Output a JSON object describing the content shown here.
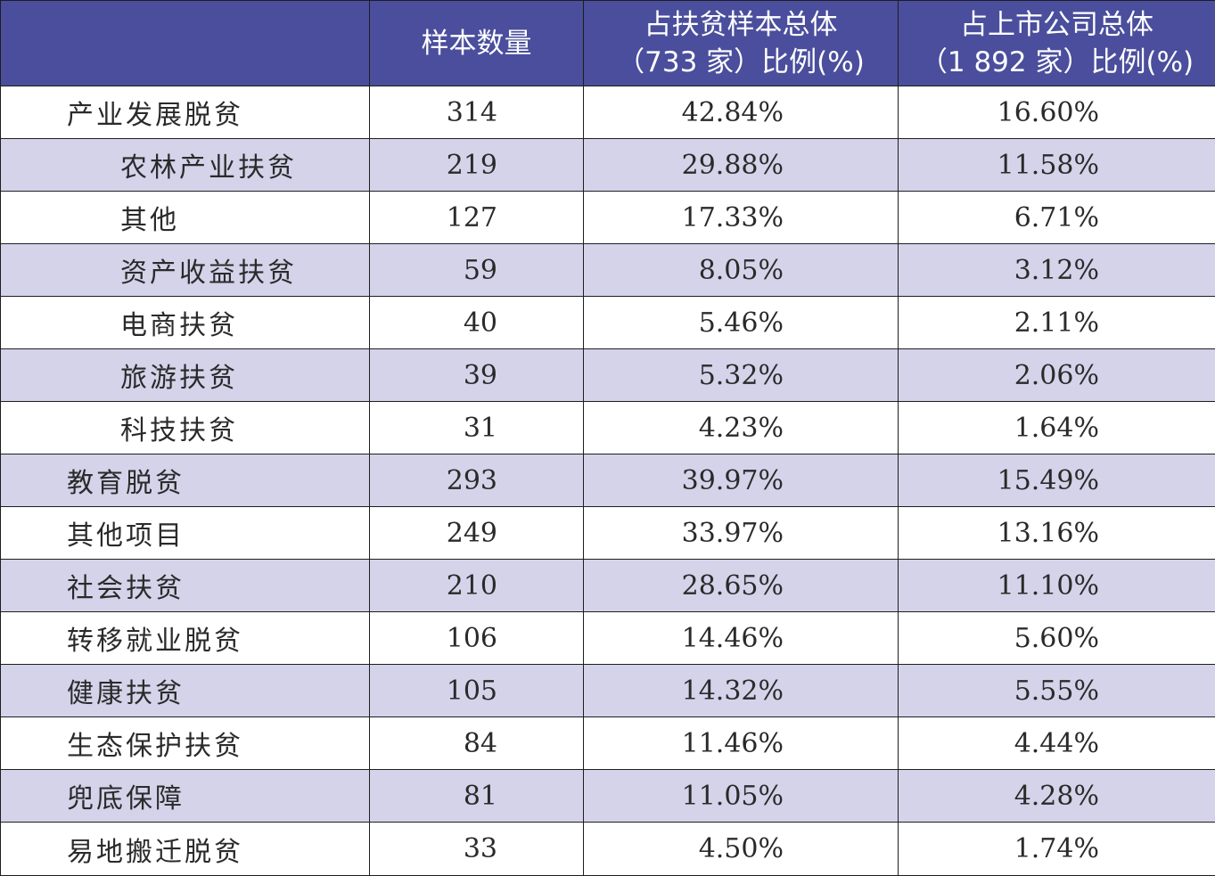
{
  "table": {
    "headers": {
      "blank": "",
      "count": "样本数量",
      "share_poverty_line1": "占扶贫样本总体",
      "share_poverty_line2": "（733 家）比例(%)",
      "share_listed_line1": "占上市公司总体",
      "share_listed_line2": "（1  892 家）比例(%)"
    },
    "rows": [
      {
        "name": "产业发展脱贫",
        "count": "314",
        "share_poverty": "42.84%",
        "share_listed": "16.60%",
        "sub": false
      },
      {
        "name": "农林产业扶贫",
        "count": "219",
        "share_poverty": "29.88%",
        "share_listed": "11.58%",
        "sub": true
      },
      {
        "name": "其他",
        "count": "127",
        "share_poverty": "17.33%",
        "share_listed": "6.71%",
        "sub": true
      },
      {
        "name": "资产收益扶贫",
        "count": "59",
        "share_poverty": "8.05%",
        "share_listed": "3.12%",
        "sub": true
      },
      {
        "name": "电商扶贫",
        "count": "40",
        "share_poverty": "5.46%",
        "share_listed": "2.11%",
        "sub": true
      },
      {
        "name": "旅游扶贫",
        "count": "39",
        "share_poverty": "5.32%",
        "share_listed": "2.06%",
        "sub": true
      },
      {
        "name": "科技扶贫",
        "count": "31",
        "share_poverty": "4.23%",
        "share_listed": "1.64%",
        "sub": true
      },
      {
        "name": "教育脱贫",
        "count": "293",
        "share_poverty": "39.97%",
        "share_listed": "15.49%",
        "sub": false
      },
      {
        "name": "其他项目",
        "count": "249",
        "share_poverty": "33.97%",
        "share_listed": "13.16%",
        "sub": false
      },
      {
        "name": "社会扶贫",
        "count": "210",
        "share_poverty": "28.65%",
        "share_listed": "11.10%",
        "sub": false
      },
      {
        "name": "转移就业脱贫",
        "count": "106",
        "share_poverty": "14.46%",
        "share_listed": "5.60%",
        "sub": false
      },
      {
        "name": "健康扶贫",
        "count": "105",
        "share_poverty": "14.32%",
        "share_listed": "5.55%",
        "sub": false
      },
      {
        "name": "生态保护扶贫",
        "count": "84",
        "share_poverty": "11.46%",
        "share_listed": "4.44%",
        "sub": false
      },
      {
        "name": "兜底保障",
        "count": "81",
        "share_poverty": "11.05%",
        "share_listed": "4.28%",
        "sub": false
      },
      {
        "name": "易地搬迁脱贫",
        "count": "33",
        "share_poverty": "4.50%",
        "share_listed": "1.74%",
        "sub": false
      }
    ]
  },
  "colors": {
    "header_bg": "#4a4e9c",
    "header_text": "#ffffff",
    "alt_row_bg": "#d4d3ea",
    "border": "#1e1e1e"
  }
}
